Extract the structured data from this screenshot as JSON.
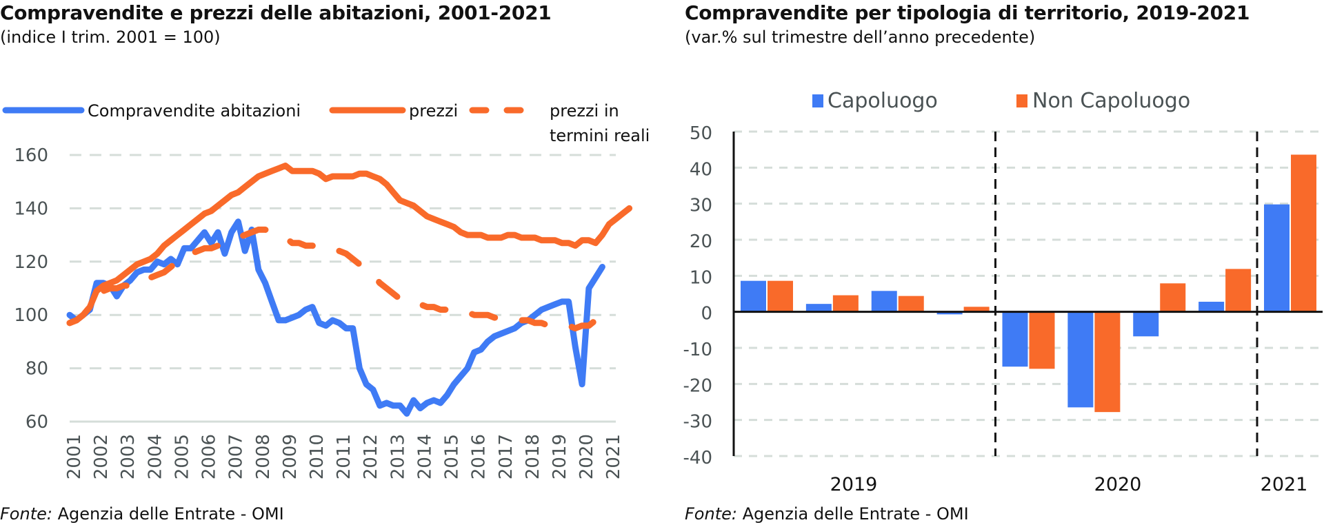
{
  "chart_data": [
    {
      "type": "line",
      "title": "Compravendite e prezzi delle abitazioni, 2001-2021",
      "subtitle": "(indice I trim. 2001 = 100)",
      "xlabel": "",
      "ylabel": "",
      "ylim": [
        60,
        160
      ],
      "yticks": [
        160,
        140,
        120,
        100,
        80,
        60
      ],
      "xticks": [
        "2001",
        "2002",
        "2003",
        "2004",
        "2005",
        "2006",
        "2007",
        "2008",
        "2009",
        "2010",
        "2011",
        "2012",
        "2013",
        "2014",
        "2015",
        "2016",
        "2017",
        "2018",
        "2019",
        "2020",
        "2021"
      ],
      "x_start": "2001 Q1",
      "frequency": "quarterly",
      "grid": true,
      "legend": "top",
      "series": [
        {
          "name": "Compravendite abitazioni",
          "color": "#3F7BF5",
          "style": "solid",
          "values": [
            100,
            98,
            100,
            102,
            112,
            112,
            111,
            107,
            111,
            113,
            116,
            117,
            117,
            120,
            119,
            121,
            119,
            125,
            125,
            128,
            131,
            127,
            131,
            123,
            131,
            135,
            124,
            132,
            117,
            112,
            105,
            98,
            98,
            99,
            100,
            102,
            103,
            97,
            96,
            98,
            97,
            95,
            95,
            80,
            74,
            72,
            66,
            67,
            66,
            66,
            63,
            68,
            65,
            67,
            68,
            67,
            70,
            74,
            77,
            80,
            86,
            87,
            90,
            92,
            93,
            94,
            95,
            97,
            98,
            100,
            102,
            103,
            104,
            105,
            105,
            88,
            74,
            110,
            114,
            118
          ]
        },
        {
          "name": "prezzi",
          "color": "#F96A2A",
          "style": "solid",
          "values": [
            97,
            98,
            100,
            103,
            109,
            111,
            112,
            113,
            115,
            117,
            119,
            120,
            121,
            123,
            126,
            128,
            130,
            132,
            134,
            136,
            138,
            139,
            141,
            143,
            145,
            146,
            148,
            150,
            152,
            153,
            154,
            155,
            156,
            154,
            154,
            154,
            154,
            153,
            151,
            152,
            152,
            152,
            152,
            153,
            153,
            152,
            151,
            149,
            146,
            143,
            142,
            141,
            139,
            137,
            136,
            135,
            134,
            133,
            131,
            130,
            130,
            130,
            129,
            129,
            129,
            130,
            130,
            129,
            129,
            129,
            128,
            128,
            128,
            127,
            127,
            126,
            128,
            128,
            127,
            130,
            134,
            136,
            138,
            140
          ]
        },
        {
          "name": "prezzi in termini reali",
          "color": "#F96A2A",
          "style": "dashed",
          "values": [
            97,
            98,
            100,
            103,
            109,
            109,
            110,
            110,
            111,
            111,
            113,
            113,
            114,
            115,
            116,
            118,
            120,
            121,
            123,
            124,
            125,
            125,
            126,
            127,
            128,
            129,
            130,
            131,
            132,
            132,
            131,
            130,
            129,
            127,
            127,
            126,
            126,
            125,
            125,
            124,
            124,
            123,
            121,
            119,
            117,
            115,
            112,
            110,
            108,
            106,
            105,
            104,
            104,
            103,
            103,
            102,
            102,
            101,
            101,
            101,
            100,
            100,
            100,
            99,
            99,
            98,
            98,
            98,
            98,
            97,
            97,
            96,
            96,
            96,
            96,
            95,
            96,
            96,
            98,
            101,
            103
          ]
        }
      ]
    },
    {
      "type": "bar",
      "title": "Compravendite per tipologia di territorio, 2019-2021",
      "subtitle": "(var.% sul trimestre dell’anno precedente)",
      "xlabel": "",
      "ylabel": "",
      "ylim": [
        -40,
        50
      ],
      "yticks": [
        50,
        40,
        30,
        20,
        10,
        0,
        -10,
        -20,
        -30,
        -40
      ],
      "grid": true,
      "legend": "top",
      "categories": [
        "2019 Q1",
        "2019 Q2",
        "2019 Q3",
        "2019 Q4",
        "2020 Q1",
        "2020 Q2",
        "2020 Q3",
        "2020 Q4",
        "2021 Q1"
      ],
      "groups": [
        {
          "label": "2019",
          "quarters": 4
        },
        {
          "label": "2020",
          "quarters": 4
        },
        {
          "label": "2021",
          "quarters": 1
        }
      ],
      "series": [
        {
          "name": "Capoluogo",
          "color": "#3F7BF5",
          "values": [
            8.6,
            2.2,
            5.8,
            -0.7,
            -15.2,
            -26.5,
            -6.8,
            2.8,
            29.8
          ]
        },
        {
          "name": "Non Capoluogo",
          "color": "#F96A2A",
          "values": [
            8.6,
            4.6,
            4.4,
            1.4,
            -15.8,
            -27.8,
            7.9,
            11.9,
            43.6
          ]
        }
      ]
    }
  ],
  "left": {
    "title": "Compravendite e prezzi delle abitazioni, 2001-2021",
    "subtitle": "(indice I trim. 2001 = 100)",
    "legend_line2": "termini reali",
    "legend_dashed_line1": "prezzi in",
    "source_label": "Fonte:",
    "source_text": " Agenzia delle Entrate - OMI"
  },
  "right": {
    "title": "Compravendite per tipologia di territorio, 2019-2021",
    "subtitle": "(var.% sul trimestre dell’anno precedente)",
    "source_label": "Fonte:",
    "source_text": " Agenzia delle Entrate - OMI"
  }
}
